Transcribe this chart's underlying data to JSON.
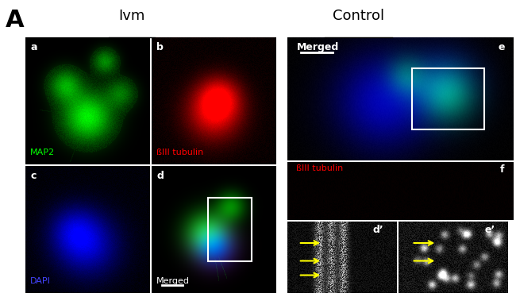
{
  "title_A": "A",
  "title_Ivm": "Ivm",
  "title_Control": "Control",
  "label_a": "a",
  "label_b": "b",
  "label_c": "c",
  "label_d": "d",
  "label_e": "e",
  "label_f": "f",
  "label_dp": "d’",
  "label_ep": "e’",
  "text_MAP2": "MAP2",
  "text_bIII_tubulin_b": "ßIII tubulin",
  "text_DAPI": "DAPI",
  "text_Merged_d": "Merged",
  "text_Merged_e": "Merged",
  "text_bIII_tubulin_f": "ßIII tubulin",
  "bg_color": "#ffffff",
  "panel_bg": "#000000"
}
